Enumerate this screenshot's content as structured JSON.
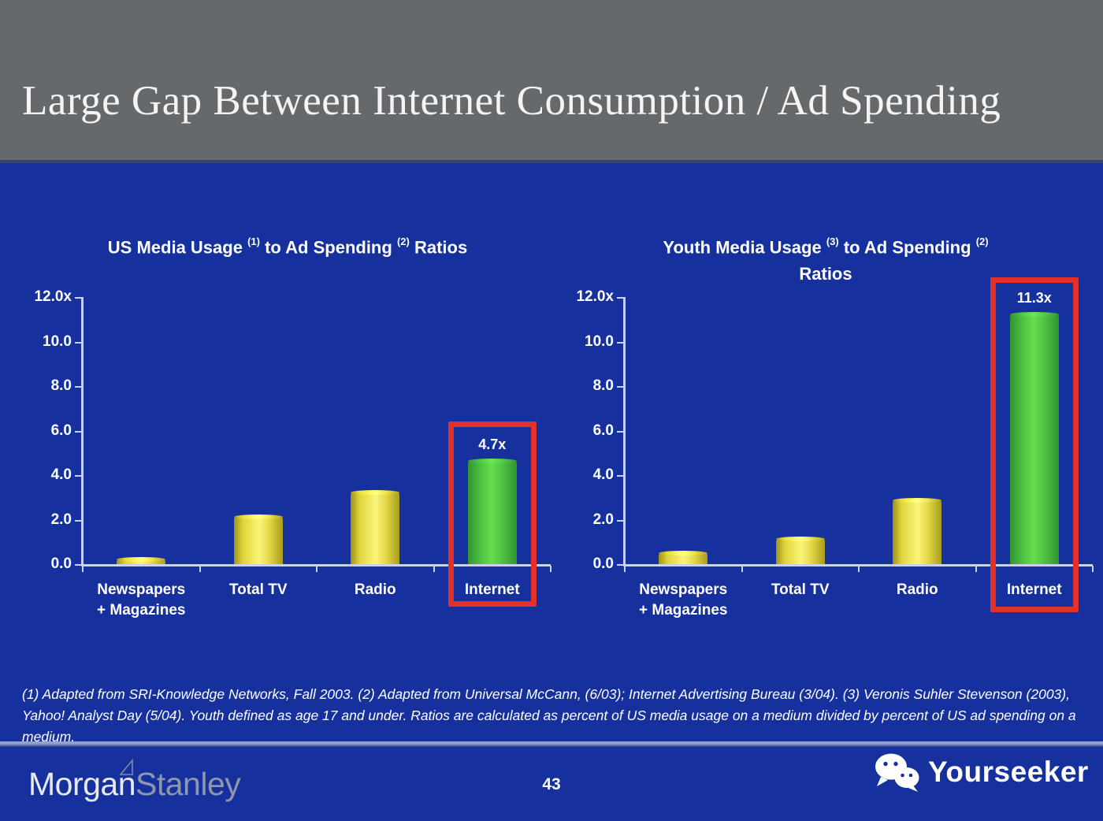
{
  "slide": {
    "title": "Large Gap Between Internet Consumption / Ad Spending",
    "page_number": "43",
    "footnote": "(1) Adapted from SRI-Knowledge Networks, Fall 2003.  (2) Adapted from Universal McCann, (6/03); Internet Advertising Bureau (3/04). (3) Veronis Suhler Stevenson (2003), Yahoo! Analyst Day (5/04).  Youth defined as age 17 and under.  Ratios are calculated as percent of US media usage on a medium divided by percent of US ad spending on a medium.",
    "brand_part1": "Morgan",
    "brand_part2": "Stanley",
    "watermark_label": "Yourseeker"
  },
  "colors": {
    "background_blue": "#16319e",
    "header_gray": "#66696c",
    "accent_red": "#e0322a",
    "bar_yellow": "#f2ea5f",
    "bar_green": "#59cc45",
    "axis_light": "#c9d2ee",
    "text_white": "#ffffff"
  },
  "chart_data": [
    {
      "type": "bar",
      "title": "US Media Usage (1) to Ad Spending (2) Ratios",
      "title_segments": {
        "t1": "US Media Usage",
        "s1": "(1)",
        "t2": "to Ad Spending",
        "s2": "(2)",
        "t3": "Ratios"
      },
      "categories": [
        "Newspapers + Magazines",
        "Total TV",
        "Radio",
        "Internet"
      ],
      "category_lines": [
        [
          "Newspapers",
          "+ Magazines"
        ],
        [
          "Total TV"
        ],
        [
          "Radio"
        ],
        [
          "Internet"
        ]
      ],
      "values": [
        0.3,
        2.2,
        3.3,
        4.7
      ],
      "bar_colors": [
        "yellow",
        "yellow",
        "yellow",
        "green"
      ],
      "highlight_index": 3,
      "annotation": {
        "index": 3,
        "label": "4.7x"
      },
      "ylim": [
        0,
        12
      ],
      "ytick_values": [
        12,
        10,
        8,
        6,
        4,
        2,
        0
      ],
      "ytick_labels": [
        "12.0x",
        "10.0",
        "8.0",
        "6.0",
        "4.0",
        "2.0",
        "0.0"
      ],
      "grid": false,
      "legend": false
    },
    {
      "type": "bar",
      "title": "Youth Media Usage (3) to Ad Spending (2) Ratios",
      "title_segments": {
        "t1": "Youth Media Usage",
        "s1": "(3)",
        "t2": "to Ad Spending",
        "s2": "(2)",
        "line2": "Ratios"
      },
      "categories": [
        "Newspapers + Magazines",
        "Total TV",
        "Radio",
        "Internet"
      ],
      "category_lines": [
        [
          "Newspapers",
          "+ Magazines"
        ],
        [
          "Total TV"
        ],
        [
          "Radio"
        ],
        [
          "Internet"
        ]
      ],
      "values": [
        0.55,
        1.2,
        2.95,
        11.3
      ],
      "bar_colors": [
        "yellow",
        "yellow",
        "yellow",
        "green"
      ],
      "highlight_index": 3,
      "annotation": {
        "index": 3,
        "label": "11.3x"
      },
      "ylim": [
        0,
        12
      ],
      "ytick_values": [
        12,
        10,
        8,
        6,
        4,
        2,
        0
      ],
      "ytick_labels": [
        "12.0x",
        "10.0",
        "8.0",
        "6.0",
        "4.0",
        "2.0",
        "0.0"
      ],
      "grid": false,
      "legend": false
    }
  ]
}
